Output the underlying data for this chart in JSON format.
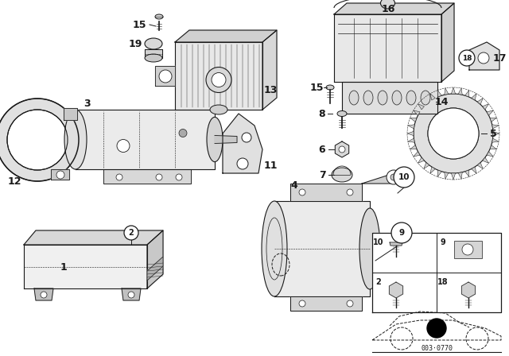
{
  "background_color": "#ffffff",
  "line_color": "#1a1a1a",
  "diagram_code": "003·0770",
  "fig_w": 6.4,
  "fig_h": 4.48,
  "dpi": 100
}
